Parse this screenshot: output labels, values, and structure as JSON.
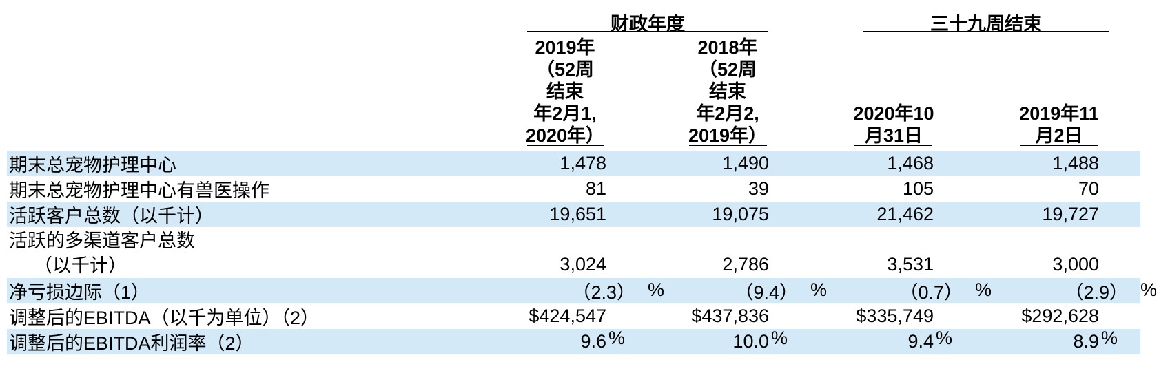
{
  "table": {
    "group_headers": {
      "fiscal": "财政年度",
      "weeks": "三十九周结束"
    },
    "column_headers": [
      {
        "lines": [
          "2019年",
          "（52周",
          "结束",
          "年2月1,",
          "2020年）"
        ]
      },
      {
        "lines": [
          "2018年",
          "（52周",
          "结束",
          "年2月2,",
          "2019年）"
        ]
      },
      {
        "lines": [
          "2020年10",
          "月31日"
        ]
      },
      {
        "lines": [
          "2019年11",
          "月2日"
        ]
      }
    ],
    "rows": [
      {
        "label": "期末总宠物护理中心",
        "values": [
          "1,478",
          "1,490",
          "1,468",
          "1,488"
        ]
      },
      {
        "label": "期末总宠物护理中心有兽医操作",
        "values": [
          "81",
          "39",
          "105",
          "70"
        ]
      },
      {
        "label": "活跃客户总数（以千计）",
        "values": [
          "19,651",
          "19,075",
          "21,462",
          "19,727"
        ]
      },
      {
        "label": "活跃的多渠道客户总数",
        "label_line2": "（以千计）",
        "values": [
          "3,024",
          "2,786",
          "3,531",
          "3,000"
        ]
      },
      {
        "label": "净亏损边际（1）",
        "values": [
          "（2.3）",
          "（9.4）",
          "（0.7）",
          "（2.9）"
        ],
        "suffix": "%"
      },
      {
        "label": "调整后的EBITDA（以千为单位）（2）",
        "values": [
          "$424,547",
          "$437,836",
          "$335,749",
          "$292,628"
        ]
      },
      {
        "label": "调整后的EBITDA利润率（2）",
        "values": [
          "9.6",
          "10.0",
          "9.4",
          "8.9"
        ],
        "suffix": "%"
      }
    ],
    "colors": {
      "stripe": "#d4e9f7",
      "text": "#000000",
      "rule": "#000000"
    }
  }
}
